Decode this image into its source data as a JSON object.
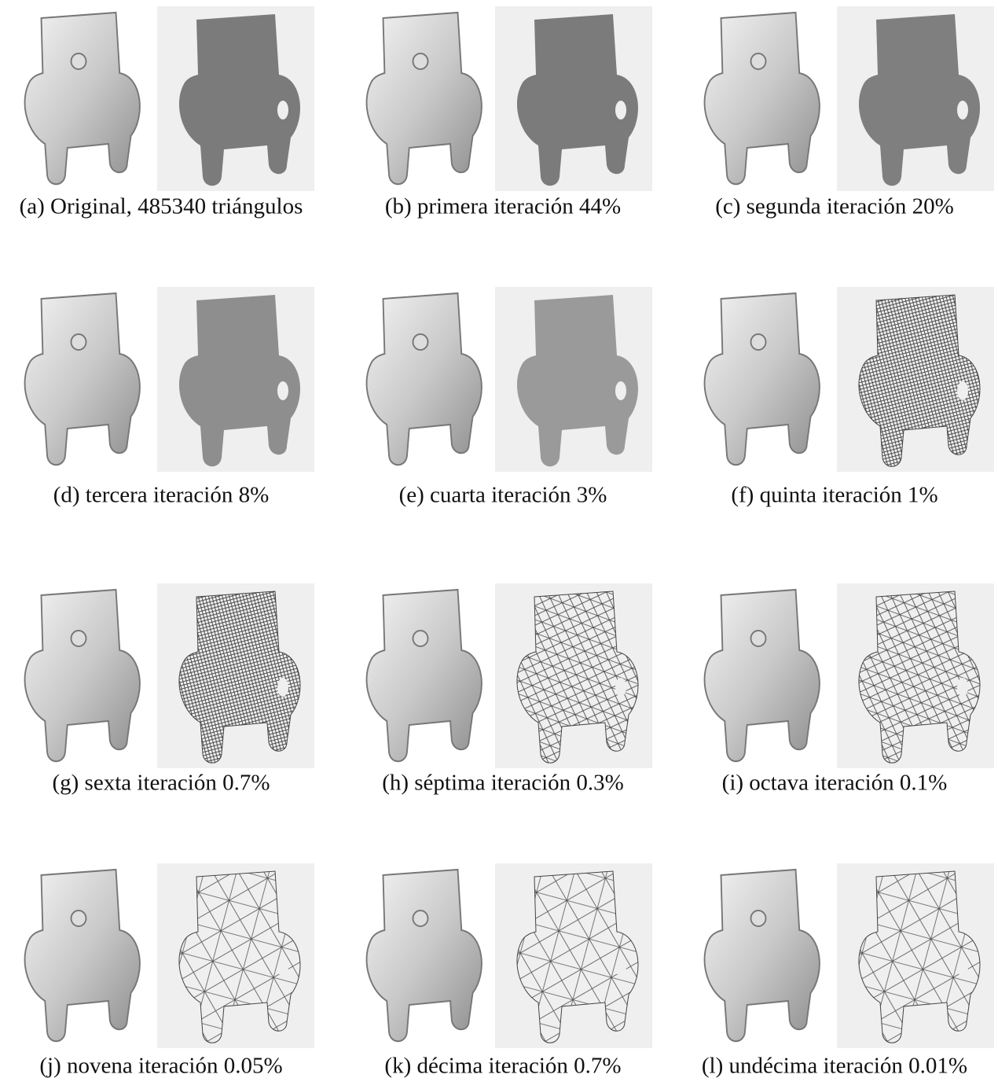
{
  "figure": {
    "panels": [
      {
        "caption": "(a) Original, 485340 triángulos"
      },
      {
        "caption": "(b) primera iteración 44%"
      },
      {
        "caption": "(c) segunda iteración 20%"
      },
      {
        "caption": "(d) tercera iteración 8%"
      },
      {
        "caption": "(e) cuarta iteración 3%"
      },
      {
        "caption": "(f) quinta iteración 1%"
      },
      {
        "caption": "(g) sexta iteración 0.7%"
      },
      {
        "caption": "(h) séptima iteración 0.3%"
      },
      {
        "caption": "(i) octava iteración 0.1%"
      },
      {
        "caption": "(j) novena iteración 0.05%"
      },
      {
        "caption": "(k) décima iteración 0.7%"
      },
      {
        "caption": "(l) undécima iteración 0.01%"
      }
    ]
  }
}
